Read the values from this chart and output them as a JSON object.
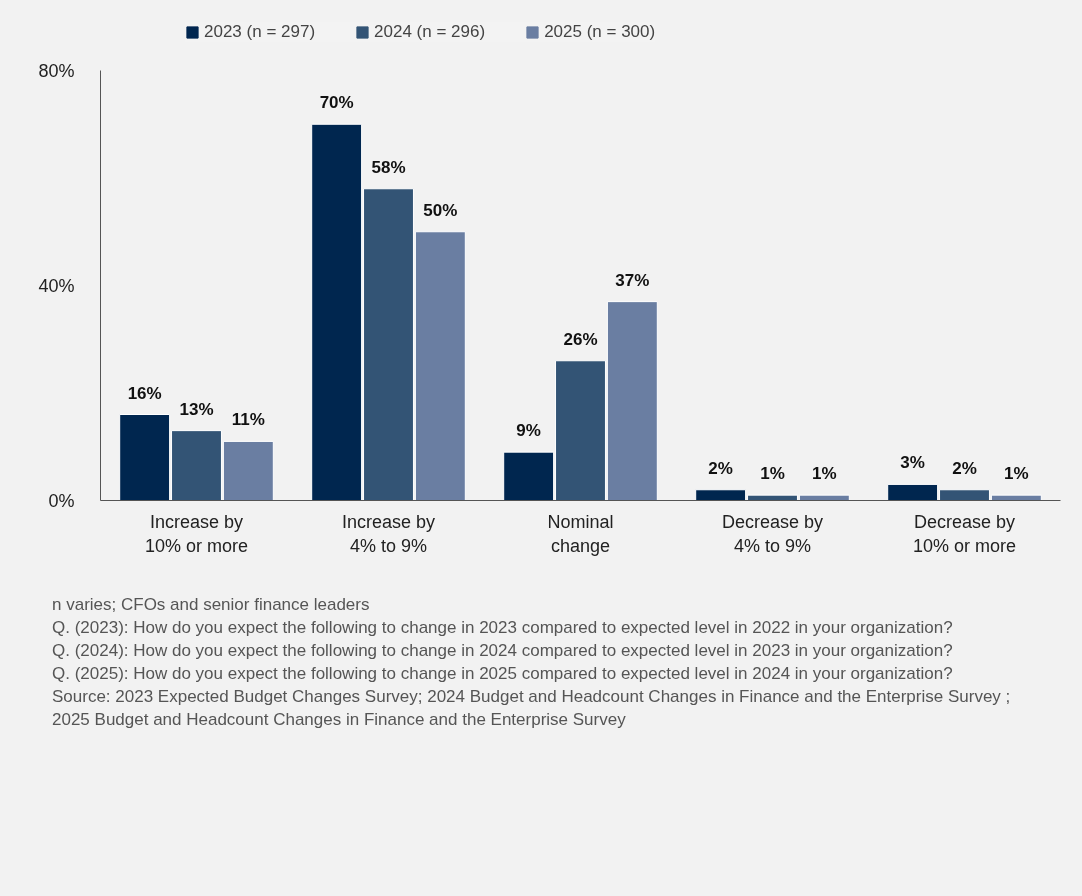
{
  "chart_data": {
    "type": "bar",
    "categories": [
      "Increase by 10% or more",
      "Increase by 4% to 9%",
      "Nominal change",
      "Decrease by 4% to 9%",
      "Decrease by 10% or more"
    ],
    "series": [
      {
        "name": "2023 (n = 297)",
        "color": "#00264f",
        "values": [
          16,
          70,
          9,
          2,
          3
        ],
        "value_labels": [
          "16%",
          "70%",
          "9%",
          "2%",
          "3%"
        ]
      },
      {
        "name": "2024 (n = 296)",
        "color": "#335475",
        "values": [
          13,
          58,
          26,
          1,
          2
        ],
        "value_labels": [
          "13%",
          "58%",
          "26%",
          "1%",
          "2%"
        ]
      },
      {
        "name": "2025 (n = 300)",
        "color": "#6a7ea2",
        "values": [
          11,
          50,
          37,
          1,
          1
        ],
        "value_labels": [
          "11%",
          "50%",
          "37%",
          "1%",
          "1%"
        ]
      }
    ],
    "ylim": [
      0,
      80
    ],
    "yticks": [
      {
        "value": 0,
        "label": "0%"
      },
      {
        "value": 40,
        "label": "40%"
      },
      {
        "value": 80,
        "label": "80%"
      }
    ],
    "grid": false,
    "legend": "top left",
    "annotations": [
      "n varies; CFOs and senior finance leaders",
      "Q. (2023): How do you expect the following to change in 2023 compared to expected level in 2022 in your organization?",
      "Q. (2024): How do you expect the following to change in 2024 compared to expected level in 2023 in your organization?",
      "Q. (2025): How do you expect the following to change in 2025 compared to expected level in 2024 in your organization?",
      "Source: 2023 Expected Budget Changes Survey; 2024 Budget and Headcount Changes in Finance and the Enterprise Survey ; 2025 Budget and Headcount Changes in Finance and the Enterprise Survey"
    ]
  }
}
